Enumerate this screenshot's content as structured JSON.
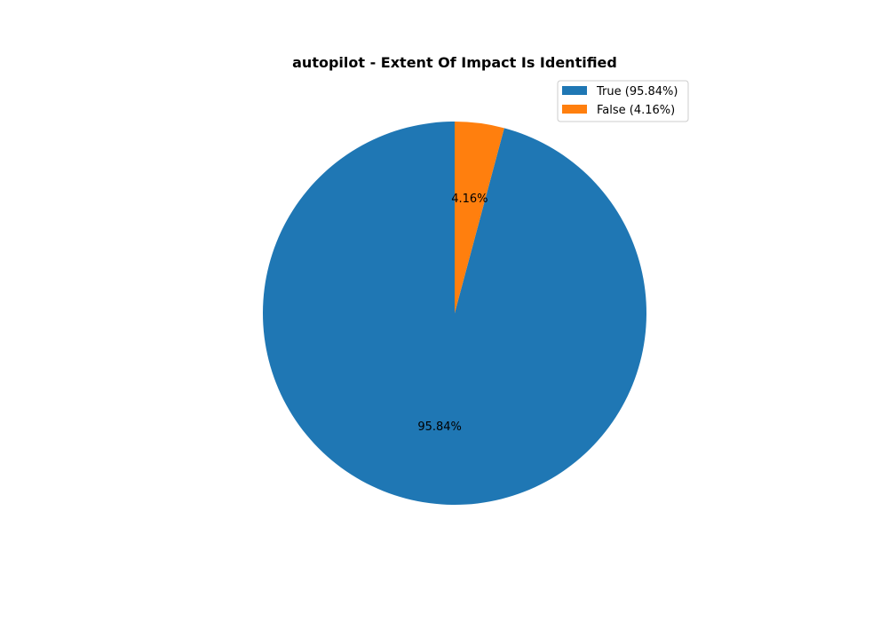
{
  "chart_data": {
    "type": "pie",
    "title": "autopilot - Extent Of Impact Is Identified",
    "slices": [
      {
        "name": "True",
        "value": 95.84,
        "label": "95.84%",
        "legend": "True (95.84%)",
        "color": "#1f77b4"
      },
      {
        "name": "False",
        "value": 4.16,
        "label": "4.16%",
        "legend": "False (4.16%)",
        "color": "#ff7f0e"
      }
    ],
    "start_angle_deg": 90,
    "direction": "counterclockwise",
    "legend_position": "top-right"
  }
}
